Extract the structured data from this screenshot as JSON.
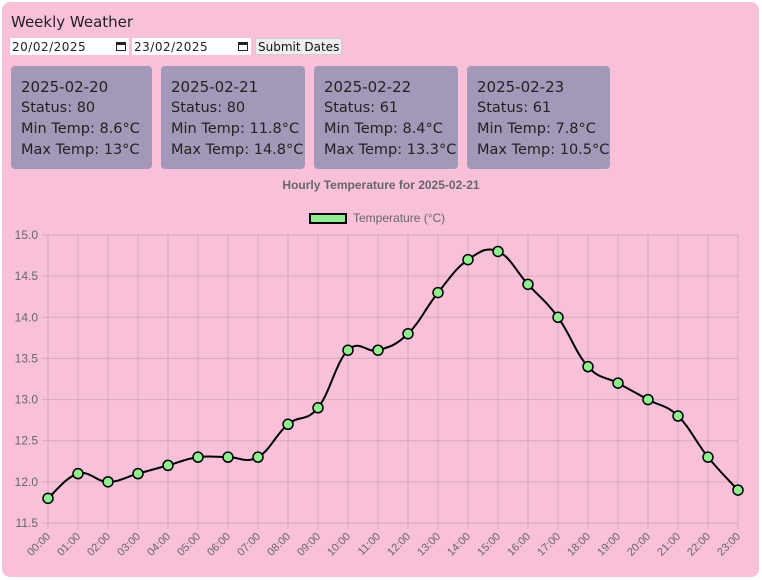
{
  "header": {
    "title": "Weekly Weather"
  },
  "dates": {
    "start": "20/02/2025",
    "end": "23/02/2025",
    "submit_label": "Submit Dates"
  },
  "cards": [
    {
      "date": "2025-02-20",
      "status": "Status: 80",
      "min": "Min Temp: 8.6°C",
      "max": "Max Temp: 13°C"
    },
    {
      "date": "2025-02-21",
      "status": "Status: 80",
      "min": "Min Temp: 11.8°C",
      "max": "Max Temp: 14.8°C"
    },
    {
      "date": "2025-02-22",
      "status": "Status: 61",
      "min": "Min Temp: 8.4°C",
      "max": "Max Temp: 13.3°C"
    },
    {
      "date": "2025-02-23",
      "status": "Status: 61",
      "min": "Min Temp: 7.8°C",
      "max": "Max Temp: 10.5°C"
    }
  ],
  "colors": {
    "background": "#f8c1d9",
    "card": "#a398b7",
    "point_fill": "#90ee90",
    "line": "#000000"
  },
  "chart_data": {
    "type": "line",
    "title": "Hourly Temperature for 2025-02-21",
    "series": [
      {
        "name": "Temperature (°C)",
        "values": [
          11.8,
          12.1,
          12.0,
          12.1,
          12.2,
          12.3,
          12.3,
          12.3,
          12.7,
          12.9,
          13.6,
          13.6,
          13.8,
          14.3,
          14.7,
          14.8,
          14.4,
          14.0,
          13.4,
          13.2,
          13.0,
          12.8,
          12.3,
          11.9
        ]
      }
    ],
    "x": [
      "00:00",
      "01:00",
      "02:00",
      "03:00",
      "04:00",
      "05:00",
      "06:00",
      "07:00",
      "08:00",
      "09:00",
      "10:00",
      "11:00",
      "12:00",
      "13:00",
      "14:00",
      "15:00",
      "16:00",
      "17:00",
      "18:00",
      "19:00",
      "20:00",
      "21:00",
      "22:00",
      "23:00"
    ],
    "ylim": [
      11.5,
      15.0
    ],
    "yticks": [
      "11.5",
      "12.0",
      "12.5",
      "13.0",
      "13.5",
      "14.0",
      "14.5",
      "15.0"
    ],
    "grid": true,
    "legend": "top"
  }
}
